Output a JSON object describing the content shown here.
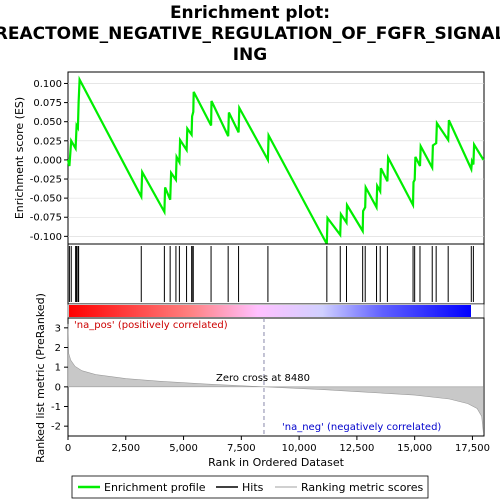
{
  "chart_data": {
    "type": "line",
    "title_lines": [
      "Enrichment plot:",
      "REACTOME_NEGATIVE_REGULATION_OF_FGFR_SIGNAL",
      "ING"
    ],
    "es_panel": {
      "ylabel": "Enrichment score (ES)",
      "ylim": [
        -0.11,
        0.115
      ],
      "yticks": [
        -0.1,
        -0.075,
        -0.05,
        -0.025,
        0.0,
        0.025,
        0.05,
        0.075,
        0.1
      ],
      "ytick_labels": [
        "-0.100",
        "-0.075",
        "-0.050",
        "-0.025",
        "0.000",
        "0.025",
        "0.050",
        "0.075",
        "0.100"
      ],
      "series": [
        {
          "name": "Enrichment profile",
          "color": "#00ee00",
          "points": [
            [
              0,
              0.0
            ],
            [
              60,
              -0.008
            ],
            [
              140,
              0.025
            ],
            [
              330,
              0.015
            ],
            [
              370,
              0.045
            ],
            [
              430,
              0.042
            ],
            [
              460,
              0.075
            ],
            [
              500,
              0.105
            ],
            [
              3170,
              -0.048
            ],
            [
              3210,
              -0.016
            ],
            [
              4170,
              -0.068
            ],
            [
              4200,
              -0.036
            ],
            [
              4420,
              -0.052
            ],
            [
              4460,
              -0.017
            ],
            [
              4670,
              -0.026
            ],
            [
              4700,
              0.004
            ],
            [
              4820,
              -0.003
            ],
            [
              4850,
              0.026
            ],
            [
              5130,
              0.013
            ],
            [
              5160,
              0.041
            ],
            [
              5350,
              0.033
            ],
            [
              5370,
              0.057
            ],
            [
              5420,
              0.063
            ],
            [
              5440,
              0.089
            ],
            [
              6190,
              0.045
            ],
            [
              6210,
              0.077
            ],
            [
              6930,
              0.031
            ],
            [
              6960,
              0.062
            ],
            [
              7380,
              0.036
            ],
            [
              7410,
              0.068
            ],
            [
              8650,
              0.0
            ],
            [
              8680,
              0.032
            ],
            [
              11200,
              -0.11
            ],
            [
              11230,
              -0.076
            ],
            [
              11780,
              -0.098
            ],
            [
              11810,
              -0.071
            ],
            [
              12050,
              -0.082
            ],
            [
              12070,
              -0.059
            ],
            [
              12750,
              -0.093
            ],
            [
              12770,
              -0.067
            ],
            [
              12860,
              -0.062
            ],
            [
              12880,
              -0.036
            ],
            [
              13350,
              -0.062
            ],
            [
              13380,
              -0.034
            ],
            [
              13510,
              -0.041
            ],
            [
              13540,
              -0.011
            ],
            [
              13820,
              -0.028
            ],
            [
              13850,
              0.003
            ],
            [
              14930,
              -0.059
            ],
            [
              14950,
              -0.029
            ],
            [
              15000,
              -0.026
            ],
            [
              15030,
              0.004
            ],
            [
              15230,
              -0.008
            ],
            [
              15260,
              0.018
            ],
            [
              15760,
              -0.01
            ],
            [
              15790,
              0.019
            ],
            [
              15930,
              0.022
            ],
            [
              15960,
              0.048
            ],
            [
              16450,
              0.026
            ],
            [
              16480,
              0.052
            ],
            [
              17450,
              -0.012
            ],
            [
              17480,
              -0.002
            ],
            [
              17540,
              -0.006
            ],
            [
              17570,
              0.02
            ],
            [
              17980,
              0.0
            ]
          ]
        }
      ]
    },
    "hits": [
      60,
      140,
      330,
      370,
      430,
      460,
      3170,
      4170,
      4420,
      4670,
      4820,
      5130,
      5350,
      5370,
      5420,
      6190,
      6930,
      7380,
      8650,
      11200,
      11780,
      12050,
      12750,
      12860,
      13350,
      13510,
      13820,
      14930,
      15000,
      15230,
      15760,
      15930,
      16450,
      17450,
      17540
    ],
    "color_bar": {
      "stops": [
        "#ff0000",
        "#ff8080",
        "#ffc0ff",
        "#d0d0ff",
        "#6060ff",
        "#0000ff"
      ]
    },
    "metric_panel": {
      "ylabel": "Ranked list metric (PreRanked)",
      "ylim": [
        -2.5,
        3.5
      ],
      "yticks": [
        3,
        2,
        1,
        0,
        -1,
        -2
      ],
      "ytick_labels": [
        "3",
        "2",
        "1",
        "0",
        "-1",
        "-2"
      ],
      "curve": [
        [
          0,
          3.2
        ],
        [
          30,
          1.7
        ],
        [
          120,
          1.35
        ],
        [
          300,
          1.05
        ],
        [
          600,
          0.82
        ],
        [
          1200,
          0.62
        ],
        [
          2500,
          0.42
        ],
        [
          4000,
          0.28
        ],
        [
          6000,
          0.14
        ],
        [
          8480,
          0.0
        ],
        [
          11000,
          -0.14
        ],
        [
          13000,
          -0.28
        ],
        [
          15000,
          -0.42
        ],
        [
          16500,
          -0.62
        ],
        [
          17300,
          -0.85
        ],
        [
          17700,
          -1.1
        ],
        [
          17900,
          -1.5
        ],
        [
          17980,
          -2.4
        ]
      ],
      "pos_label": "'na_pos' (positively correlated)",
      "neg_label": "'na_neg' (negatively correlated)",
      "zero_cross_label": "Zero cross at 8480",
      "zero_cross": 8480
    },
    "x_axis": {
      "xlabel": "Rank in Ordered Dataset",
      "xlim": [
        0,
        18000
      ],
      "xticks": [
        0,
        2500,
        5000,
        7500,
        10000,
        12500,
        15000,
        17500
      ],
      "xtick_labels": [
        "0",
        "2,500",
        "5,000",
        "7,500",
        "10,000",
        "12,500",
        "15,000",
        "17,500"
      ]
    },
    "legend": {
      "items": [
        {
          "label": "Enrichment profile",
          "color": "#00ee00"
        },
        {
          "label": "Hits",
          "color": "#000000"
        },
        {
          "label": "Ranking metric scores",
          "color": "#c0c0c0"
        }
      ]
    }
  }
}
